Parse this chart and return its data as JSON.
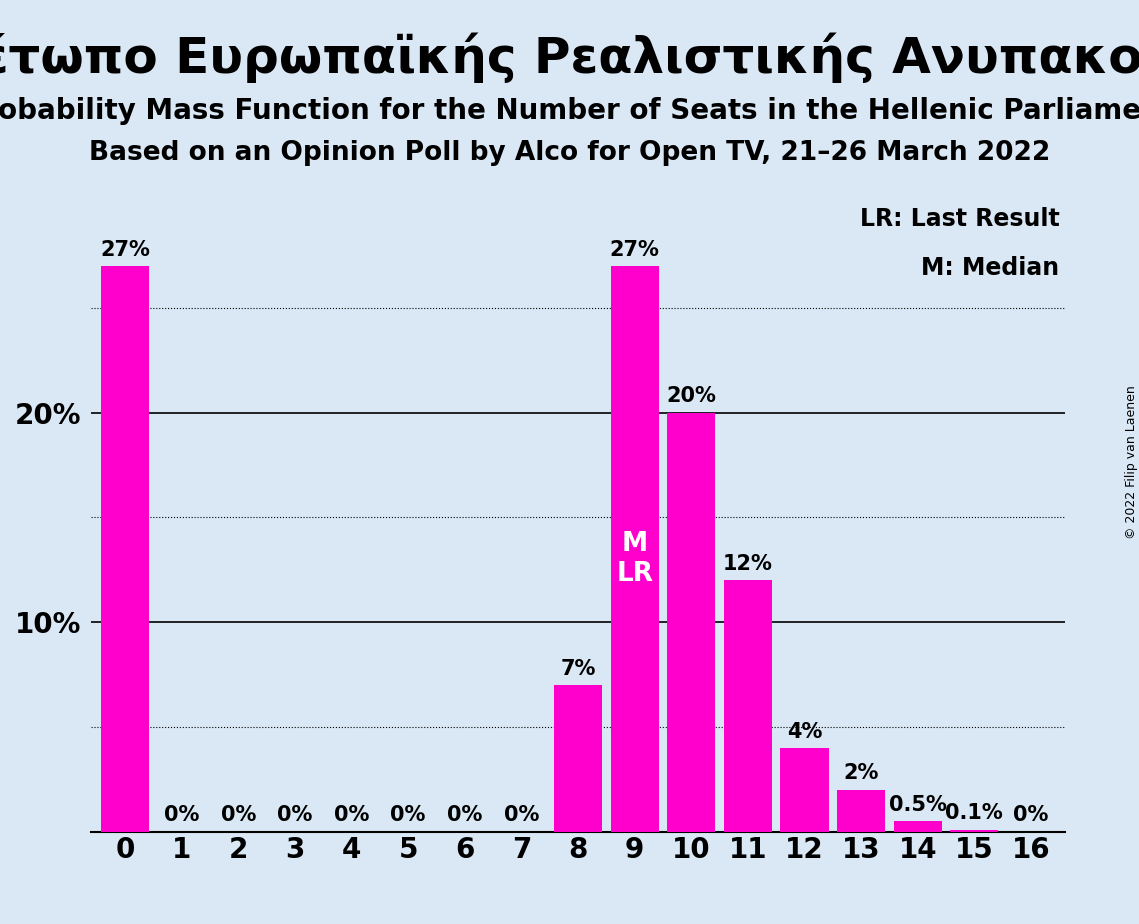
{
  "title_greek": "Μέτωπο Ευρωπαϊκής Ρεαλιστικής Ανυπακοής",
  "subtitle1": "Probability Mass Function for the Number of Seats in the Hellenic Parliament",
  "subtitle2": "Based on an Opinion Poll by Alco for Open TV, 21–26 March 2022",
  "copyright": "© 2022 Filip van Laenen",
  "categories": [
    0,
    1,
    2,
    3,
    4,
    5,
    6,
    7,
    8,
    9,
    10,
    11,
    12,
    13,
    14,
    15,
    16
  ],
  "values": [
    27,
    0,
    0,
    0,
    0,
    0,
    0,
    0,
    7,
    27,
    20,
    12,
    4,
    2,
    0.5,
    0.1,
    0
  ],
  "bar_color": "#FF00CC",
  "background_color": "#DAE8F5",
  "median_seat": 9,
  "legend_lr": "LR: Last Result",
  "legend_m": "M: Median",
  "title_fontsize": 36,
  "subtitle1_fontsize": 20,
  "subtitle2_fontsize": 19,
  "bar_label_fontsize": 15,
  "axis_tick_fontsize": 20,
  "legend_fontsize": 17,
  "copyright_fontsize": 9
}
